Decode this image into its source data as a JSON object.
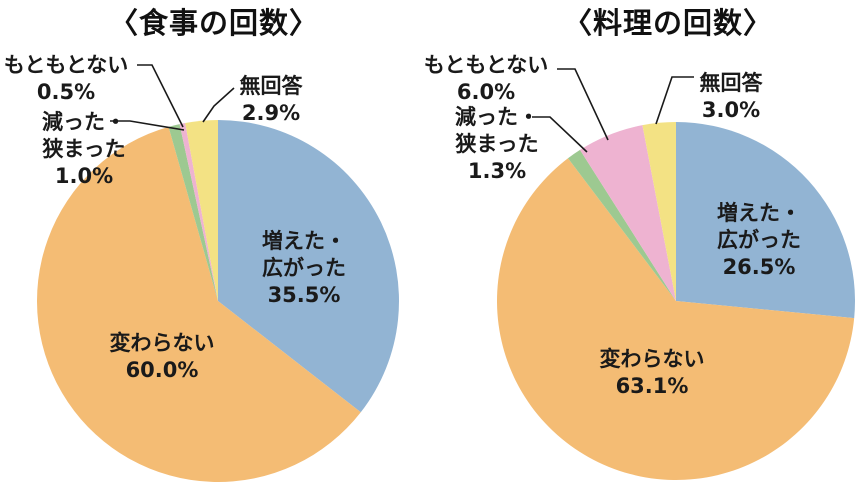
{
  "figure": {
    "background": "#ffffff",
    "text_color": "#1a1a1a",
    "leader_line_color": "#1a1a1a"
  },
  "chart_data": [
    {
      "type": "pie",
      "title": "〈食事の回数〉",
      "unit": "%",
      "direction": "clockwise",
      "start_angle_deg": 0,
      "slices": [
        {
          "id": "increased",
          "label": "増えた・広がった",
          "value": 35.5,
          "color": "#92b4d3",
          "label_placement": "inside",
          "callout": "増えた・\n広がった\n35.5%"
        },
        {
          "id": "unchanged",
          "label": "変わらない",
          "value": 60.0,
          "color": "#f4bc74",
          "label_placement": "inside",
          "callout": "変わらない\n60.0%"
        },
        {
          "id": "decreased",
          "label": "減った・狭まった",
          "value": 1.0,
          "color": "#9dc991",
          "label_placement": "outside",
          "callout": "減った・\n狭まった\n1.0%"
        },
        {
          "id": "never-had",
          "label": "もともとない",
          "value": 0.5,
          "color": "#eeb3d1",
          "label_placement": "outside",
          "callout": "もともとない\n0.5%"
        },
        {
          "id": "no-answer",
          "label": "無回答",
          "value": 2.9,
          "color": "#f3e284",
          "label_placement": "outside",
          "callout": "無回答\n2.9%"
        }
      ]
    },
    {
      "type": "pie",
      "title": "〈料理の回数〉",
      "unit": "%",
      "direction": "clockwise",
      "start_angle_deg": 0,
      "slices": [
        {
          "id": "increased",
          "label": "増えた・広がった",
          "value": 26.5,
          "color": "#92b4d3",
          "label_placement": "inside",
          "callout": "増えた・\n広がった\n26.5%"
        },
        {
          "id": "unchanged",
          "label": "変わらない",
          "value": 63.1,
          "color": "#f4bc74",
          "label_placement": "inside",
          "callout": "変わらない\n63.1%"
        },
        {
          "id": "decreased",
          "label": "減った・狭まった",
          "value": 1.3,
          "color": "#9dc991",
          "label_placement": "outside",
          "callout": "減った・\n狭まった\n1.3%"
        },
        {
          "id": "never-had",
          "label": "もともとない",
          "value": 6.0,
          "color": "#eeb3d1",
          "label_placement": "outside",
          "callout": "もともとない\n6.0%"
        },
        {
          "id": "no-answer",
          "label": "無回答",
          "value": 3.0,
          "color": "#f3e284",
          "label_placement": "outside",
          "callout": "無回答\n3.0%"
        }
      ]
    }
  ]
}
